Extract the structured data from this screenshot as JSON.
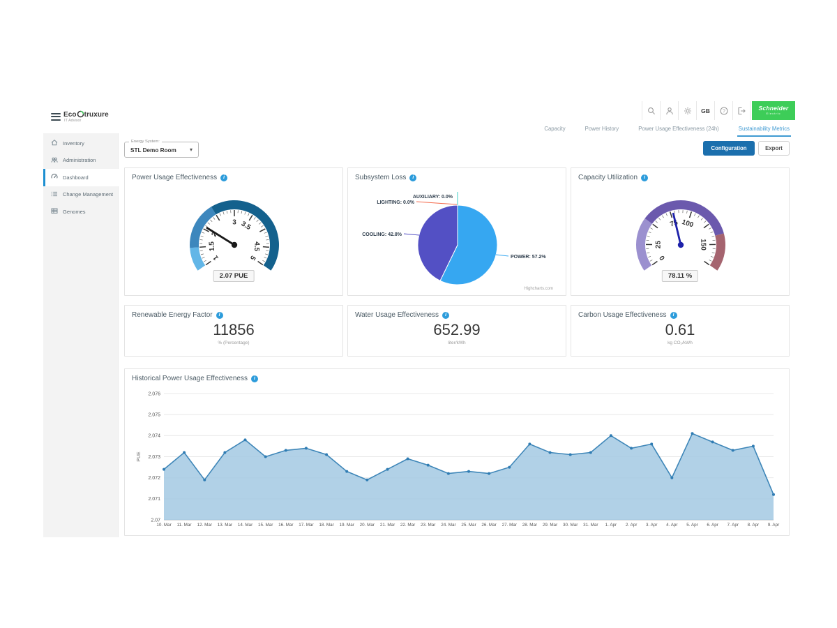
{
  "app": {
    "logo": {
      "brand_eco": "Eco",
      "brand_struxure": "truxure",
      "sub": "IT Advisor"
    },
    "sidebar": {
      "items": [
        {
          "label": "Inventory",
          "icon": "home-icon",
          "active": false
        },
        {
          "label": "Administration",
          "icon": "people-icon",
          "active": false
        },
        {
          "label": "Dashboard",
          "icon": "gauge-icon",
          "active": true
        },
        {
          "label": "Change Management",
          "icon": "list-icon",
          "active": false
        },
        {
          "label": "Genomes",
          "icon": "grid-icon",
          "active": false
        }
      ]
    },
    "topbar": {
      "locale": "GB",
      "brand": "Schneider",
      "brand_sub": "Electric"
    },
    "tabs": [
      {
        "label": "Capacity",
        "active": false
      },
      {
        "label": "Power History",
        "active": false
      },
      {
        "label": "Power Usage Effectiveness (24h)",
        "active": false
      },
      {
        "label": "Sustainability Metrics",
        "active": true
      }
    ],
    "controls": {
      "energy_system_label": "Energy System:",
      "energy_system_value": "STL Demo Room",
      "configuration_label": "Configuration",
      "export_label": "Export"
    }
  },
  "cards": {
    "pue": {
      "title": "Power Usage Effectiveness",
      "value_label": "2.07 PUE"
    },
    "subsystem": {
      "title": "Subsystem Loss",
      "credit": "Highcharts.com"
    },
    "capacity": {
      "title": "Capacity Utilization",
      "value_label": "78.11 %"
    },
    "renewable": {
      "title": "Renewable Energy Factor",
      "value": "11856",
      "unit": "% (Percentage)"
    },
    "water": {
      "title": "Water Usage Effectiveness",
      "value": "652.99",
      "unit": "liter/kWh"
    },
    "carbon": {
      "title": "Carbon Usage Effectiveness",
      "value": "0.61",
      "unit": "kg CO₂/kWh"
    },
    "historical": {
      "title": "Historical Power Usage Effectiveness"
    }
  },
  "chart_data": [
    {
      "type": "gauge",
      "title": "Power Usage Effectiveness",
      "min": 1,
      "max": 5,
      "value": 2.07,
      "unit": "PUE",
      "tick_interval": 0.5,
      "minor_tick": 0.1,
      "labels_shown": [
        "1",
        "1.5",
        "2",
        "3",
        "3.5",
        "4.5",
        "5"
      ],
      "bands": [
        {
          "from": 1,
          "to": 1.5,
          "color": "#62b6e7"
        },
        {
          "from": 1.5,
          "to": 2.5,
          "color": "#3d87bd"
        },
        {
          "from": 2.5,
          "to": 5,
          "color": "#14618d"
        }
      ],
      "needle_color": "#1a1a1a"
    },
    {
      "type": "pie",
      "title": "Subsystem Loss",
      "slices": [
        {
          "name": "POWER",
          "value": 57.2,
          "label": "POWER: 57.2%",
          "color": "#36a7f1"
        },
        {
          "name": "COOLING",
          "value": 42.8,
          "label": "COOLING: 42.8%",
          "color": "#5350c4"
        },
        {
          "name": "LIGHTING",
          "value": 0.0,
          "label": "LIGHTING: 0.0%",
          "color": "#f4694b"
        },
        {
          "name": "AUXILIARY",
          "value": 0.0,
          "label": "AUXILIARY: 0.0%",
          "color": "#3ecfc4"
        }
      ],
      "credit": "Highcharts.com"
    },
    {
      "type": "gauge",
      "title": "Capacity Utilization",
      "min": 0,
      "max": 175,
      "value": 78.11,
      "unit": "%",
      "tick_interval": 25,
      "minor_tick": 5,
      "labels_shown": [
        "0",
        "25",
        "75",
        "100",
        "150"
      ],
      "bands": [
        {
          "from": 0,
          "to": 50,
          "color": "#9b90cf"
        },
        {
          "from": 50,
          "to": 140,
          "color": "#6b59ad"
        },
        {
          "from": 140,
          "to": 175,
          "color": "#a5646f"
        }
      ],
      "needle_color": "#1e22aa"
    },
    {
      "type": "area",
      "title": "Historical Power Usage Effectiveness",
      "ylabel": "PUE",
      "ylim": [
        2.07,
        2.076
      ],
      "y_ticks": [
        "2.07",
        "2.071",
        "2.072",
        "2.073",
        "2.074",
        "2.075",
        "2.076"
      ],
      "grid": true,
      "categories": [
        "10. Mar",
        "11. Mar",
        "12. Mar",
        "13. Mar",
        "14. Mar",
        "15. Mar",
        "16. Mar",
        "17. Mar",
        "18. Mar",
        "19. Mar",
        "20. Mar",
        "21. Mar",
        "22. Mar",
        "23. Mar",
        "24. Mar",
        "25. Mar",
        "26. Mar",
        "27. Mar",
        "28. Mar",
        "29. Mar",
        "30. Mar",
        "31. Mar",
        "1. Apr",
        "2. Apr",
        "3. Apr",
        "4. Apr",
        "5. Apr",
        "6. Apr",
        "7. Apr",
        "8. Apr",
        "9. Apr"
      ],
      "values": [
        2.0724,
        2.0732,
        2.0719,
        2.0732,
        2.0738,
        2.073,
        2.0733,
        2.0734,
        2.0731,
        2.0723,
        2.0719,
        2.0724,
        2.0729,
        2.0726,
        2.0722,
        2.0723,
        2.0722,
        2.0725,
        2.0736,
        2.0732,
        2.0731,
        2.0732,
        2.074,
        2.0734,
        2.0736,
        2.072,
        2.0741,
        2.0737,
        2.0733,
        2.0735,
        2.0712
      ],
      "line_color": "#3e86b8",
      "fill_color": "#a3c9e3",
      "marker_color": "#2f7cb3"
    }
  ]
}
